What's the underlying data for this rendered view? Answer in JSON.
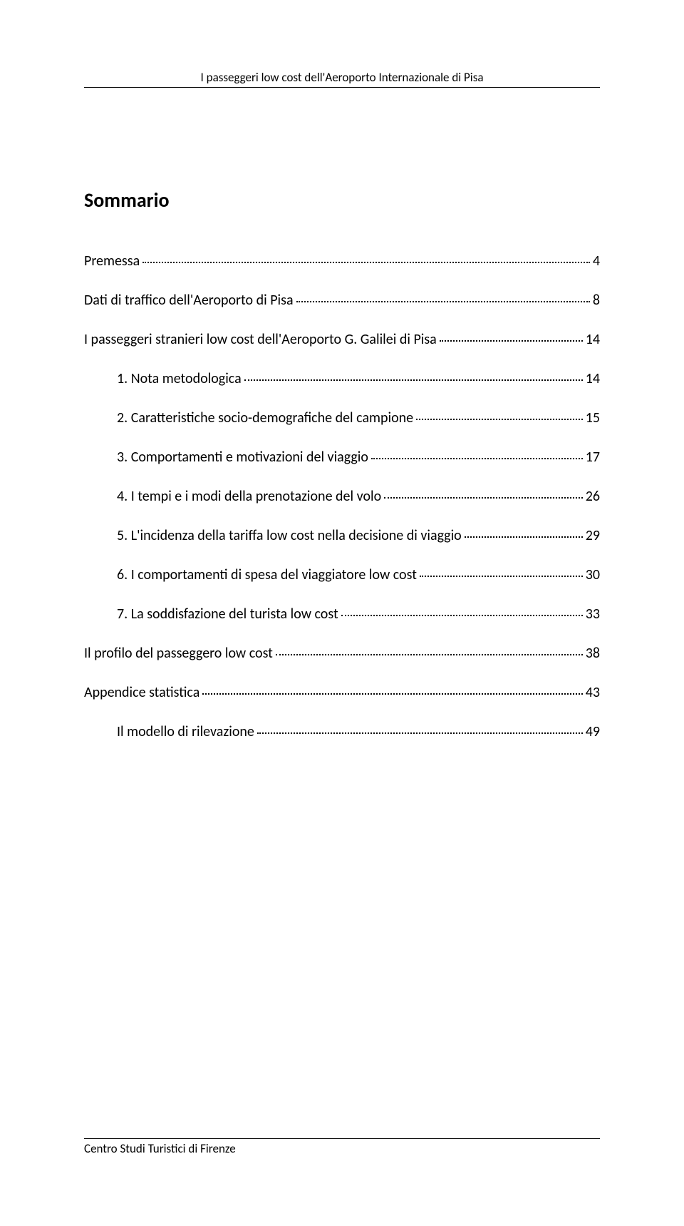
{
  "header": "I passeggeri low cost dell'Aeroporto Internazionale di Pisa",
  "title": "Sommario",
  "toc": [
    {
      "label": "Premessa",
      "page": "4",
      "indent": false
    },
    {
      "label": "Dati di traffico dell'Aeroporto di Pisa",
      "page": "8",
      "indent": false
    },
    {
      "label": "I passeggeri stranieri low cost dell'Aeroporto G. Galilei di Pisa",
      "page": "14",
      "indent": false
    },
    {
      "label": "1. Nota metodologica",
      "page": "14",
      "indent": true
    },
    {
      "label": "2. Caratteristiche socio-demografiche del campione",
      "page": "15",
      "indent": true
    },
    {
      "label": "3. Comportamenti e motivazioni del viaggio",
      "page": "17",
      "indent": true
    },
    {
      "label": "4. I tempi e i modi della prenotazione del volo",
      "page": "26",
      "indent": true
    },
    {
      "label": "5. L'incidenza della tariffa low cost nella decisione di viaggio",
      "page": "29",
      "indent": true
    },
    {
      "label": "6. I comportamenti di spesa del viaggiatore low cost",
      "page": "30",
      "indent": true
    },
    {
      "label": "7. La soddisfazione del turista low cost",
      "page": "33",
      "indent": true
    },
    {
      "label": "Il profilo del passeggero low cost",
      "page": "38",
      "indent": false
    },
    {
      "label": "Appendice statistica",
      "page": "43",
      "indent": false
    },
    {
      "label": "Il modello di rilevazione",
      "page": "49",
      "indent": true
    }
  ],
  "footer": "Centro Studi Turistici di Firenze"
}
